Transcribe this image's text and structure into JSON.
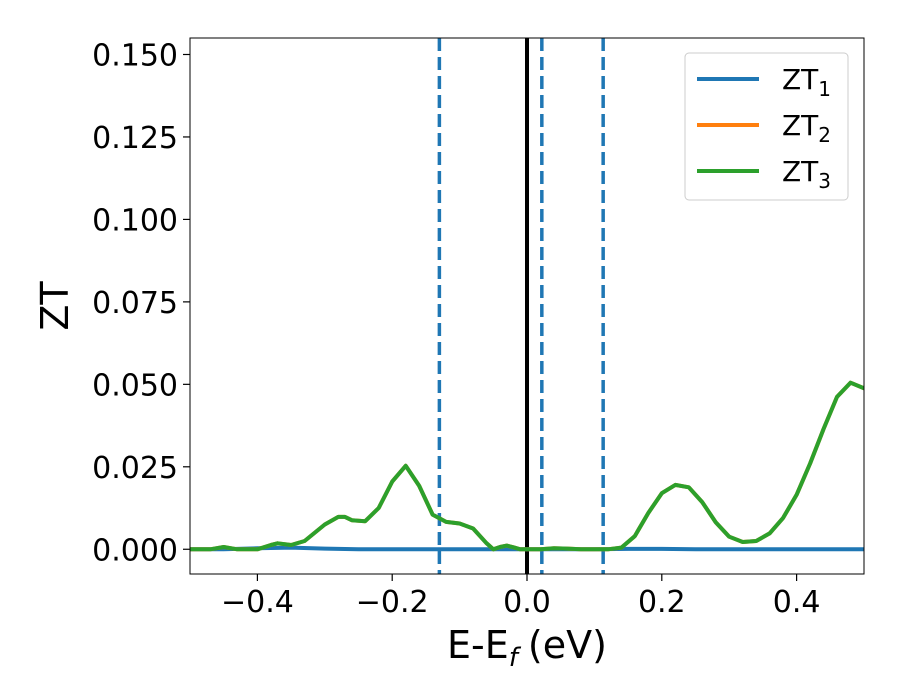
{
  "chart_data": {
    "type": "line",
    "xlabel": "E-E",
    "xlabel_sub": "f",
    "xlabel_unit": "(eV)",
    "ylabel": "ZT",
    "xlim": [
      -0.5,
      0.5
    ],
    "ylim": [
      -0.0075,
      0.155
    ],
    "x_ticks": [
      -0.4,
      -0.2,
      0.0,
      0.2,
      0.4
    ],
    "x_tick_labels": [
      "−0.4",
      "−0.2",
      "0.0",
      "0.2",
      "0.4"
    ],
    "y_ticks": [
      0.0,
      0.025,
      0.05,
      0.075,
      0.1,
      0.125,
      0.15
    ],
    "y_tick_labels": [
      "0.000",
      "0.025",
      "0.050",
      "0.075",
      "0.100",
      "0.125",
      "0.150"
    ],
    "grid": false,
    "legend_position": "top-right",
    "series": [
      {
        "name": "ZT",
        "name_sub": "1",
        "color": "#1f77b4",
        "x": [
          -0.5,
          -0.45,
          -0.4,
          -0.35,
          -0.3,
          -0.25,
          -0.2,
          -0.15,
          -0.1,
          -0.05,
          0.0,
          0.05,
          0.1,
          0.15,
          0.2,
          0.25,
          0.3,
          0.35,
          0.4,
          0.45,
          0.5
        ],
        "y": [
          0.0,
          0.0,
          0.0003,
          0.0005,
          0.0002,
          0.0,
          0.0,
          0.0,
          0.0,
          0.0,
          0.0,
          0.0,
          0.0,
          0.0001,
          0.0001,
          0.0,
          0.0,
          0.0,
          0.0,
          0.0,
          0.0
        ]
      },
      {
        "name": "ZT",
        "name_sub": "2",
        "color": "#ff7f0e",
        "x": [
          -0.5,
          -0.47,
          -0.45,
          -0.43,
          -0.4,
          -0.38,
          -0.37,
          -0.35,
          -0.33,
          -0.3,
          -0.28,
          -0.27,
          -0.26,
          -0.24,
          -0.22,
          -0.2,
          -0.18,
          -0.16,
          -0.14,
          -0.12,
          -0.1,
          -0.08,
          -0.06,
          -0.05,
          -0.04,
          -0.03,
          -0.02,
          -0.01,
          0.0,
          0.02,
          0.04,
          0.06,
          0.08,
          0.1,
          0.12,
          0.14,
          0.16,
          0.18,
          0.2,
          0.22,
          0.24,
          0.26,
          0.28,
          0.3,
          0.32,
          0.34,
          0.36,
          0.38,
          0.4,
          0.42,
          0.44,
          0.46,
          0.48,
          0.5
        ],
        "y": [
          0.0,
          0.0,
          0.0007,
          0.0,
          0.0,
          0.0013,
          0.0018,
          0.0013,
          0.0025,
          0.0075,
          0.0098,
          0.0098,
          0.0088,
          0.0085,
          0.0125,
          0.0205,
          0.0253,
          0.0192,
          0.0105,
          0.0083,
          0.0078,
          0.0063,
          0.0018,
          0.0,
          0.0007,
          0.0011,
          0.0006,
          0.0,
          0.0,
          0.0,
          0.0003,
          0.0002,
          0.0,
          0.0,
          0.0,
          0.0005,
          0.004,
          0.011,
          0.017,
          0.0195,
          0.0188,
          0.0143,
          0.0082,
          0.0038,
          0.0022,
          0.0025,
          0.0048,
          0.0095,
          0.0165,
          0.026,
          0.0365,
          0.0462,
          0.0505,
          0.0488
        ]
      },
      {
        "name": "ZT",
        "name_sub": "3",
        "color": "#2ca02c",
        "x": [
          -0.5,
          -0.47,
          -0.45,
          -0.43,
          -0.4,
          -0.38,
          -0.37,
          -0.35,
          -0.33,
          -0.3,
          -0.28,
          -0.27,
          -0.26,
          -0.24,
          -0.22,
          -0.2,
          -0.18,
          -0.16,
          -0.14,
          -0.12,
          -0.1,
          -0.08,
          -0.06,
          -0.05,
          -0.04,
          -0.03,
          -0.02,
          -0.01,
          0.0,
          0.02,
          0.04,
          0.06,
          0.08,
          0.1,
          0.12,
          0.14,
          0.16,
          0.18,
          0.2,
          0.22,
          0.24,
          0.26,
          0.28,
          0.3,
          0.32,
          0.34,
          0.36,
          0.38,
          0.4,
          0.42,
          0.44,
          0.46,
          0.48,
          0.5
        ],
        "y": [
          0.0,
          0.0,
          0.0007,
          0.0,
          0.0,
          0.0013,
          0.0018,
          0.0013,
          0.0025,
          0.0075,
          0.0098,
          0.0098,
          0.0088,
          0.0085,
          0.0125,
          0.0205,
          0.0253,
          0.0192,
          0.0105,
          0.0083,
          0.0078,
          0.0063,
          0.0018,
          0.0,
          0.0007,
          0.0011,
          0.0006,
          0.0,
          0.0,
          0.0,
          0.0003,
          0.0002,
          0.0,
          0.0,
          0.0,
          0.0005,
          0.004,
          0.011,
          0.017,
          0.0195,
          0.0188,
          0.0143,
          0.0082,
          0.0038,
          0.0022,
          0.0025,
          0.0048,
          0.0095,
          0.0165,
          0.026,
          0.0365,
          0.0462,
          0.0505,
          0.0488
        ]
      }
    ],
    "vertical_lines": [
      {
        "x": 0.0,
        "color": "#000000",
        "style": "solid"
      },
      {
        "x": -0.13,
        "color": "#1f77b4",
        "style": "dashed"
      },
      {
        "x": 0.022,
        "color": "#1f77b4",
        "style": "dashed"
      },
      {
        "x": 0.113,
        "color": "#1f77b4",
        "style": "dashed"
      }
    ]
  }
}
